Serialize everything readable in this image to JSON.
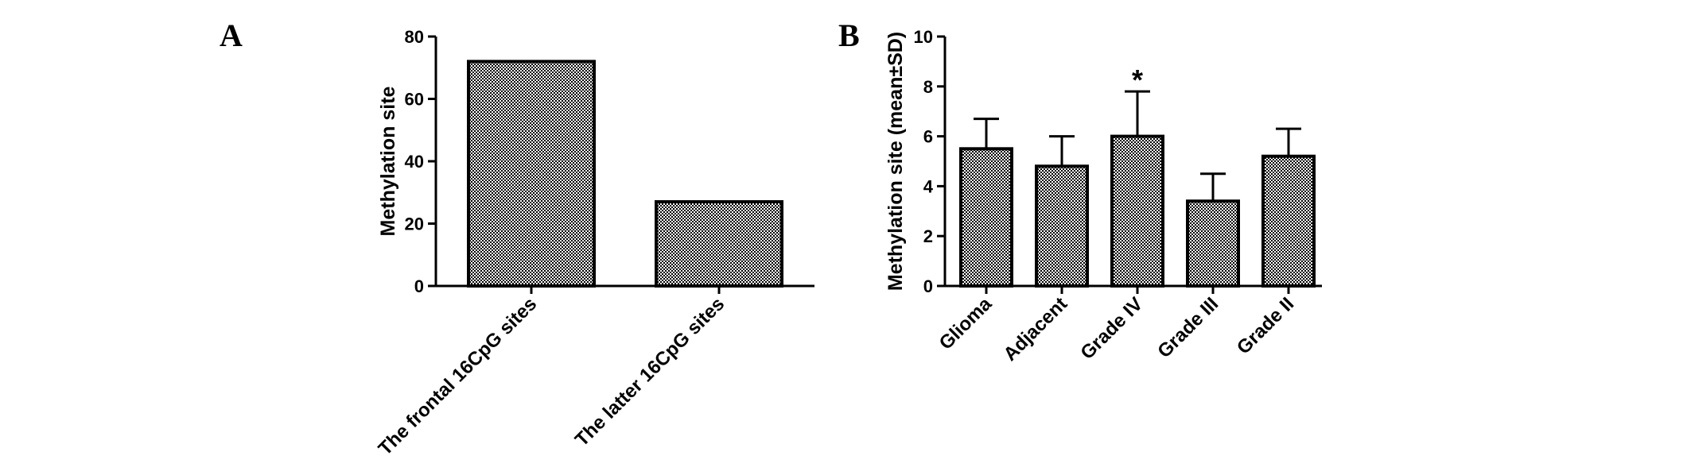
{
  "panels": {
    "a": {
      "letter": "A"
    },
    "b": {
      "letter": "B"
    }
  },
  "chart_data": [
    {
      "type": "bar",
      "panel": "A",
      "categories": [
        "The frontal 16CpG sites",
        "The latter 16CpG sites"
      ],
      "values": [
        72,
        27
      ],
      "title": "",
      "xlabel": "",
      "ylabel": "Methylation site",
      "ylim": [
        0,
        80
      ],
      "yticks": [
        0,
        20,
        40,
        60,
        80
      ],
      "bar_fill": "crosshatch",
      "grid": false
    },
    {
      "type": "bar",
      "panel": "B",
      "categories": [
        "Glioma",
        "Adjacent",
        "Grade IV",
        "Grade III",
        "Grade II"
      ],
      "values": [
        5.5,
        4.8,
        6.0,
        3.4,
        5.2
      ],
      "errors": [
        1.2,
        1.2,
        1.8,
        1.1,
        1.1
      ],
      "annotations": [
        "",
        "",
        "*",
        "",
        ""
      ],
      "title": "",
      "xlabel": "",
      "ylabel": "Methylation site (mean±SD)",
      "ylim": [
        0,
        10
      ],
      "yticks": [
        0,
        2,
        4,
        6,
        8,
        10
      ],
      "bar_fill": "crosshatch",
      "grid": false
    }
  ]
}
